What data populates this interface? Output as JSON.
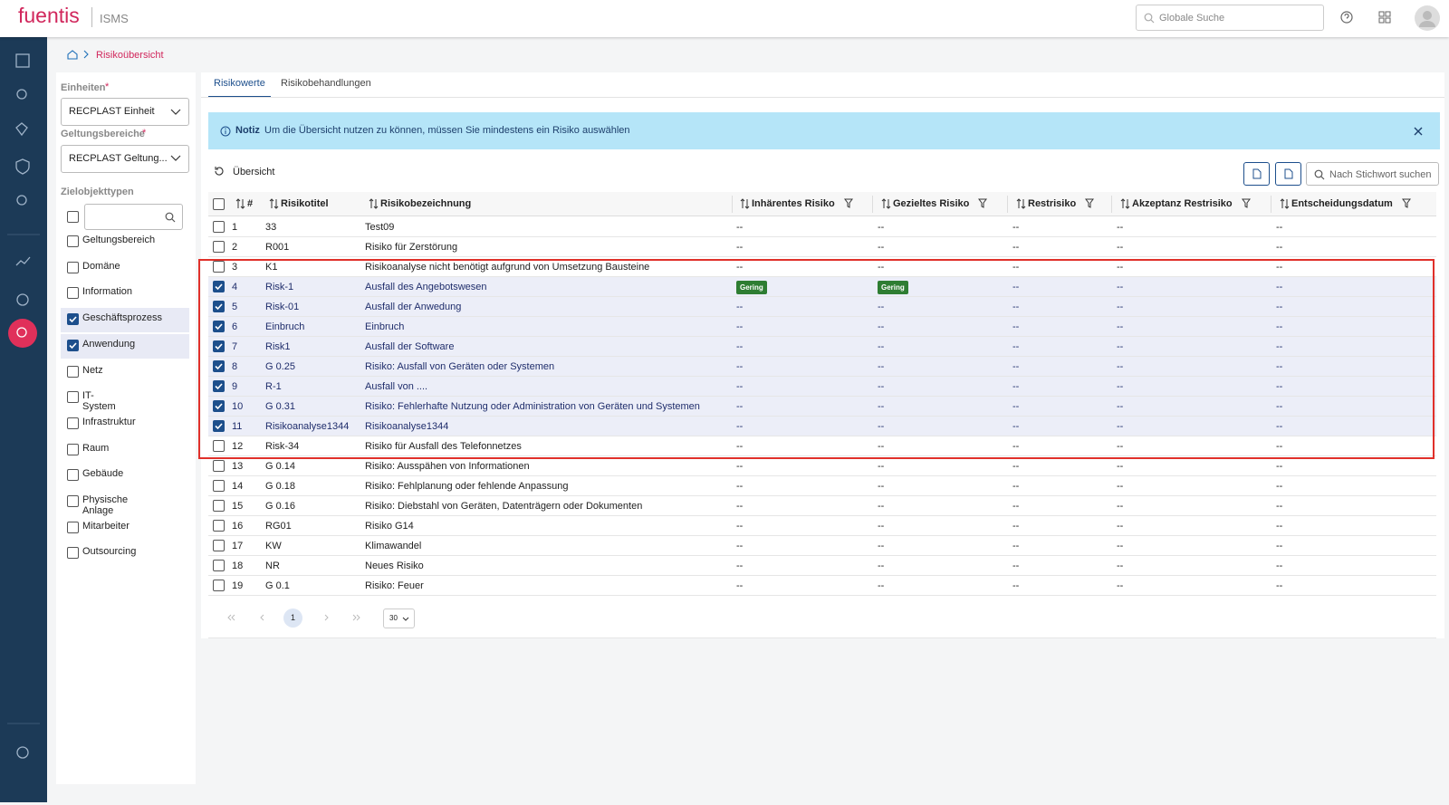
{
  "header": {
    "logo": "fuentis",
    "product": "ISMS",
    "search_placeholder": "Globale Suche"
  },
  "breadcrumb": {
    "current": "Risikoübersicht"
  },
  "filters": {
    "units": {
      "label": "Einheiten",
      "required": "*",
      "value": "RECPLAST Einheit"
    },
    "scopes": {
      "label": "Geltungsbereiche",
      "required": "*",
      "value": "RECPLAST Geltung..."
    },
    "types": {
      "label": "Zielobjekttypen",
      "items": [
        {
          "label": "Geltungsbereich",
          "checked": false
        },
        {
          "label": "Domäne",
          "checked": false
        },
        {
          "label": "Information",
          "checked": false
        },
        {
          "label": "Geschäftsprozess",
          "checked": true
        },
        {
          "label": "Anwendung",
          "checked": true
        },
        {
          "label": "Netz",
          "checked": false
        },
        {
          "label": "IT-System",
          "checked": false
        },
        {
          "label": "Infrastruktur",
          "checked": false
        },
        {
          "label": "Raum",
          "checked": false
        },
        {
          "label": "Gebäude",
          "checked": false
        },
        {
          "label": "Physische Anlage",
          "checked": false
        },
        {
          "label": "Mitarbeiter",
          "checked": false
        },
        {
          "label": "Outsourcing",
          "checked": false
        }
      ]
    }
  },
  "tabs": [
    {
      "label": "Risikowerte",
      "active": true
    },
    {
      "label": "Risikobehandlungen",
      "active": false
    }
  ],
  "notice": {
    "title": "Notiz",
    "text": "Um die Übersicht nutzen zu können, müssen Sie mindestens ein Risiko auswählen"
  },
  "toolbar": {
    "overview": "Übersicht",
    "search_placeholder": "Nach Stichwort suchen"
  },
  "table": {
    "columns": [
      {
        "label": "#",
        "filter": false
      },
      {
        "label": "Risikotitel",
        "filter": false
      },
      {
        "label": "Risikobezeichnung",
        "filter": false
      },
      {
        "label": "Inhärentes Risiko",
        "filter": true
      },
      {
        "label": "Gezieltes Risiko",
        "filter": true
      },
      {
        "label": "Restrisiko",
        "filter": true
      },
      {
        "label": "Akzeptanz Restrisiko",
        "filter": true
      },
      {
        "label": "Entscheidungsdatum",
        "filter": true
      }
    ],
    "rows": [
      {
        "checked": false,
        "cells": [
          "1",
          "33",
          "Test09",
          "--",
          "--",
          "--",
          "--",
          "--"
        ]
      },
      {
        "checked": false,
        "cells": [
          "2",
          "R001",
          "Risiko für Zerstörung",
          "--",
          "--",
          "--",
          "--",
          "--"
        ]
      },
      {
        "checked": false,
        "cells": [
          "3",
          "K1",
          "Risikoanalyse nicht benötigt aufgrund von Umsetzung Bausteine",
          "--",
          "--",
          "--",
          "--",
          "--"
        ]
      },
      {
        "checked": true,
        "cells": [
          "4",
          "Risk-1",
          "Ausfall des Angebotswesen",
          {
            "text": "Gering",
            "color": "#2e7d32"
          },
          {
            "text": "Gering",
            "color": "#2e7d32"
          },
          "--",
          "--",
          "--"
        ]
      },
      {
        "checked": true,
        "cells": [
          "5",
          "Risk-01",
          "Ausfall der Anwedung",
          "--",
          "--",
          "--",
          "--",
          "--"
        ]
      },
      {
        "checked": true,
        "cells": [
          "6",
          "Einbruch",
          "Einbruch",
          "--",
          "--",
          "--",
          "--",
          "--"
        ]
      },
      {
        "checked": true,
        "cells": [
          "7",
          "Risk1",
          "Ausfall der Software",
          "--",
          "--",
          "--",
          "--",
          "--"
        ]
      },
      {
        "checked": true,
        "cells": [
          "8",
          "G 0.25",
          "Risiko: Ausfall von Geräten oder Systemen",
          "--",
          "--",
          "--",
          "--",
          "--"
        ]
      },
      {
        "checked": true,
        "cells": [
          "9",
          "R-1",
          "Ausfall von ....",
          "--",
          "--",
          "--",
          "--",
          "--"
        ]
      },
      {
        "checked": true,
        "cells": [
          "10",
          "G 0.31",
          "Risiko: Fehlerhafte Nutzung oder Administration von Geräten und Systemen",
          "--",
          "--",
          "--",
          "--",
          "--"
        ]
      },
      {
        "checked": true,
        "cells": [
          "11",
          "Risikoanalyse1344",
          "Risikoanalyse1344",
          "--",
          "--",
          "--",
          "--",
          "--"
        ]
      },
      {
        "checked": false,
        "cells": [
          "12",
          "Risk-34",
          "Risiko für Ausfall des Telefonnetzes",
          "--",
          "--",
          "--",
          "--",
          "--"
        ]
      },
      {
        "checked": false,
        "cells": [
          "13",
          "G 0.14",
          "Risiko: Ausspähen von Informationen",
          "--",
          "--",
          "--",
          "--",
          "--"
        ]
      },
      {
        "checked": false,
        "cells": [
          "14",
          "G 0.18",
          "Risiko: Fehlplanung oder fehlende Anpassung",
          "--",
          "--",
          "--",
          "--",
          "--"
        ]
      },
      {
        "checked": false,
        "cells": [
          "15",
          "G 0.16",
          "Risiko: Diebstahl von Geräten, Datenträgern oder Dokumenten",
          "--",
          "--",
          "--",
          "--",
          "--"
        ]
      },
      {
        "checked": false,
        "cells": [
          "16",
          "RG01",
          "Risiko G14",
          "--",
          "--",
          "--",
          "--",
          "--"
        ]
      },
      {
        "checked": false,
        "cells": [
          "17",
          "KW",
          "Klimawandel",
          "--",
          "--",
          "--",
          "--",
          "--"
        ]
      },
      {
        "checked": false,
        "cells": [
          "18",
          "NR",
          "Neues Risiko",
          "--",
          "--",
          "--",
          "--",
          "--"
        ]
      },
      {
        "checked": false,
        "cells": [
          "19",
          "G 0.1",
          "Risiko: Feuer",
          "--",
          "--",
          "--",
          "--",
          "--"
        ]
      }
    ]
  },
  "pagination": {
    "page": "1",
    "page_size": "30"
  }
}
